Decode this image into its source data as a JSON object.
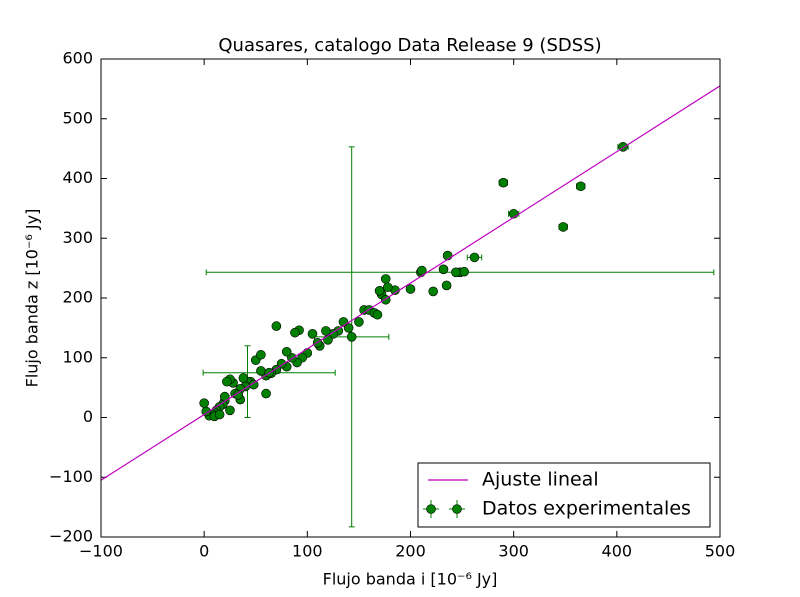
{
  "chart_data": {
    "type": "scatter",
    "title": "Quasares, catalogo Data Release 9 (SDSS)",
    "xlabel": "Flujo banda i [10⁻⁶ Jy]",
    "ylabel": "Flujo banda z [10⁻⁶ Jy]",
    "xlim": [
      -100,
      500
    ],
    "ylim": [
      -200,
      600
    ],
    "xticks": [
      {
        "value": -100,
        "label": "−100"
      },
      0,
      100,
      200,
      300,
      400,
      500
    ],
    "yticks": [
      {
        "value": -200,
        "label": "−200"
      },
      {
        "value": -100,
        "label": "−100"
      },
      0,
      100,
      200,
      300,
      400,
      500,
      600
    ],
    "legend": "lower right",
    "series": [
      {
        "name": "Ajuste lineal",
        "type": "line",
        "color": "#bf00bf",
        "x": [
          -100,
          500
        ],
        "y": [
          -105,
          555
        ]
      },
      {
        "name": "Datos experimentales",
        "type": "errorbar",
        "color": "#008000",
        "x": [
          290,
          300,
          365,
          348,
          406,
          262,
          248,
          252,
          244,
          235,
          222,
          210,
          211,
          232,
          236,
          185,
          176,
          178,
          172,
          170,
          155,
          160,
          165,
          168,
          176,
          143,
          140,
          135,
          130,
          125,
          120,
          118,
          112,
          105,
          100,
          92,
          88,
          70,
          95,
          90,
          85,
          80,
          75,
          70,
          65,
          60,
          55,
          50,
          55,
          45,
          42,
          40,
          35,
          30,
          28,
          25,
          22,
          20,
          18,
          15,
          12,
          10,
          8,
          5,
          2,
          0,
          10,
          15,
          25,
          20,
          35,
          60,
          63,
          80,
          110,
          150,
          200,
          48,
          33,
          38
        ],
        "y": [
          393,
          341,
          387,
          319,
          453,
          268,
          243,
          244,
          243,
          221,
          211,
          243,
          246,
          248,
          271,
          213,
          232,
          218,
          206,
          212,
          180,
          180,
          175,
          172,
          197,
          135,
          150,
          160,
          145,
          140,
          130,
          145,
          120,
          140,
          108,
          146,
          142,
          153,
          100,
          92,
          100,
          85,
          90,
          80,
          74,
          70,
          78,
          96,
          105,
          60,
          60,
          52,
          48,
          40,
          58,
          64,
          60,
          28,
          22,
          18,
          12,
          8,
          5,
          3,
          10,
          24,
          2,
          5,
          12,
          35,
          30,
          40,
          75,
          110,
          125,
          160,
          215,
          55,
          38,
          66
        ],
        "xerr": [
          4,
          5,
          4,
          4,
          5,
          7,
          246,
          0,
          0,
          0,
          0,
          0,
          0,
          0,
          0,
          0,
          0,
          0,
          0,
          0,
          0,
          0,
          0,
          0,
          0,
          36,
          0,
          0,
          0,
          0,
          0,
          0,
          0,
          0,
          0,
          0,
          0,
          0,
          0,
          0,
          0,
          0,
          0,
          0,
          0,
          0,
          0,
          0,
          0,
          0,
          0,
          0,
          0,
          0,
          0,
          0,
          0,
          0,
          0,
          0,
          0,
          0,
          0,
          0,
          0,
          0,
          0,
          0,
          0,
          0,
          0,
          0,
          64,
          0,
          0,
          0,
          0,
          0,
          0,
          0
        ],
        "yerr": [
          5,
          5,
          4,
          4,
          5,
          0,
          0,
          0,
          0,
          0,
          0,
          0,
          0,
          0,
          0,
          0,
          0,
          0,
          0,
          0,
          0,
          0,
          0,
          0,
          0,
          318,
          0,
          0,
          0,
          0,
          0,
          0,
          0,
          0,
          0,
          0,
          0,
          0,
          0,
          0,
          0,
          0,
          0,
          0,
          0,
          0,
          0,
          0,
          0,
          0,
          60,
          0,
          0,
          0,
          0,
          0,
          0,
          0,
          0,
          0,
          0,
          0,
          0,
          0,
          0,
          0,
          0,
          0,
          0,
          0,
          0,
          0,
          0,
          0,
          0,
          0,
          0,
          0,
          0,
          0
        ]
      }
    ]
  }
}
